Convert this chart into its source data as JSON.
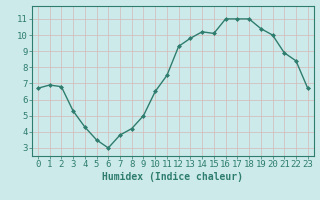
{
  "x": [
    0,
    1,
    2,
    3,
    4,
    5,
    6,
    7,
    8,
    9,
    10,
    11,
    12,
    13,
    14,
    15,
    16,
    17,
    18,
    19,
    20,
    21,
    22,
    23
  ],
  "y": [
    6.7,
    6.9,
    6.8,
    5.3,
    4.3,
    3.5,
    3.0,
    3.8,
    4.2,
    5.0,
    6.5,
    7.5,
    9.3,
    9.8,
    10.2,
    10.1,
    11.0,
    11.0,
    11.0,
    10.4,
    10.0,
    8.9,
    8.4,
    6.7
  ],
  "line_color": "#2e7d6e",
  "marker": "D",
  "marker_size": 2.0,
  "bg_color": "#cdeaea",
  "grid_color": "#b8d8d8",
  "xlabel": "Humidex (Indice chaleur)",
  "ylim": [
    2.5,
    11.8
  ],
  "xlim": [
    -0.5,
    23.5
  ],
  "yticks": [
    3,
    4,
    5,
    6,
    7,
    8,
    9,
    10,
    11
  ],
  "xticks": [
    0,
    1,
    2,
    3,
    4,
    5,
    6,
    7,
    8,
    9,
    10,
    11,
    12,
    13,
    14,
    15,
    16,
    17,
    18,
    19,
    20,
    21,
    22,
    23
  ],
  "tick_color": "#2e7d6e",
  "label_color": "#2e7d6e",
  "font_size_xlabel": 7,
  "font_size_ticks": 6.5,
  "linewidth": 1.0
}
